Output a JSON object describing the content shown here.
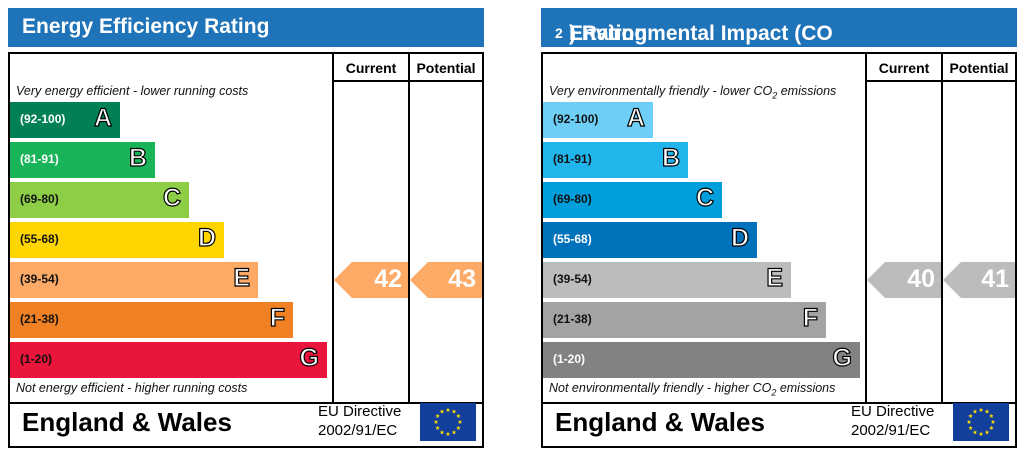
{
  "chart_data": [
    {
      "type": "bar",
      "title": "Energy Efficiency Rating",
      "columns": [
        "Current",
        "Potential"
      ],
      "top_note": "Very energy efficient - lower running costs",
      "bottom_note": "Not energy efficient - higher running costs",
      "bands": [
        {
          "letter": "A",
          "range": "(92-100)",
          "color": "#008054"
        },
        {
          "letter": "B",
          "range": "(81-91)",
          "color": "#19b459"
        },
        {
          "letter": "C",
          "range": "(69-80)",
          "color": "#8dce46"
        },
        {
          "letter": "D",
          "range": "(55-68)",
          "color": "#ffd500"
        },
        {
          "letter": "E",
          "range": "(39-54)",
          "color": "#fcaa65"
        },
        {
          "letter": "F",
          "range": "(21-38)",
          "color": "#ef8023"
        },
        {
          "letter": "G",
          "range": "(1-20)",
          "color": "#e9153b"
        }
      ],
      "current": {
        "value": "42",
        "band": "E",
        "color": "#fcaa65"
      },
      "potential": {
        "value": "43",
        "band": "E",
        "color": "#fcaa65"
      },
      "footer": {
        "country": "England & Wales",
        "directive_line1": "EU Directive",
        "directive_line2": "2002/91/EC"
      }
    },
    {
      "type": "bar",
      "title": "Environmental Impact (CO2) Rating",
      "title_main": "Environmental Impact (CO",
      "title_sub": "2",
      "title_end": ") Rating",
      "columns": [
        "Current",
        "Potential"
      ],
      "top_note": "Very environmentally friendly - lower CO2 emissions",
      "top_note_main": "Very environmentally friendly - lower CO",
      "top_note_sub": "2",
      "top_note_end": " emissions",
      "bottom_note": "Not environmentally friendly - higher CO2 emissions",
      "bottom_note_main": "Not environmentally friendly - higher CO",
      "bottom_note_sub": "2",
      "bottom_note_end": " emissions",
      "bands": [
        {
          "letter": "A",
          "range": "(92-100)",
          "color": "#6ecff6"
        },
        {
          "letter": "B",
          "range": "(81-91)",
          "color": "#22b5ec"
        },
        {
          "letter": "C",
          "range": "(69-80)",
          "color": "#009fdb"
        },
        {
          "letter": "D",
          "range": "(55-68)",
          "color": "#0072bb"
        },
        {
          "letter": "E",
          "range": "(39-54)",
          "color": "#bbbcbe"
        },
        {
          "letter": "F",
          "range": "(21-38)",
          "color": "#a3a3a5"
        },
        {
          "letter": "G",
          "range": "(1-20)",
          "color": "#828282"
        }
      ],
      "current": {
        "value": "40",
        "band": "E",
        "color": "#bbbcbe"
      },
      "potential": {
        "value": "41",
        "band": "E",
        "color": "#bbbcbe"
      },
      "footer": {
        "country": "England & Wales",
        "directive_line1": "EU Directive",
        "directive_line2": "2002/91/EC"
      }
    }
  ]
}
